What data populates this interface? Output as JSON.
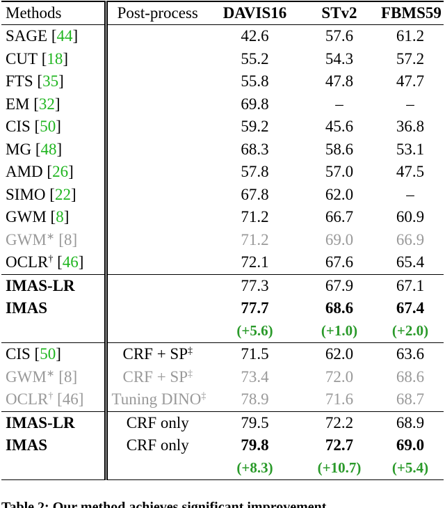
{
  "header": {
    "methods": "Methods",
    "post_process": "Post-process",
    "datasets": [
      "DAVIS16",
      "STv2",
      "FBMS59"
    ]
  },
  "cite_brackets": [
    "[",
    "]"
  ],
  "groups": [
    {
      "rows": [
        {
          "method": "SAGE",
          "cite": "44",
          "values": [
            "42.6",
            "57.6",
            "61.2"
          ]
        },
        {
          "method": "CUT",
          "cite": "18",
          "values": [
            "55.2",
            "54.3",
            "57.2"
          ]
        },
        {
          "method": "FTS",
          "cite": "35",
          "values": [
            "55.8",
            "47.8",
            "47.7"
          ]
        },
        {
          "method": "EM",
          "cite": "32",
          "values": [
            "69.8",
            "–",
            "–"
          ]
        },
        {
          "method": "CIS",
          "cite": "50",
          "values": [
            "59.2",
            "45.6",
            "36.8"
          ]
        },
        {
          "method": "MG",
          "cite": "48",
          "values": [
            "68.3",
            "58.6",
            "53.1"
          ]
        },
        {
          "method": "AMD",
          "cite": "26",
          "values": [
            "57.8",
            "57.0",
            "47.5"
          ]
        },
        {
          "method": "SIMO",
          "cite": "22",
          "values": [
            "67.8",
            "62.0",
            "–"
          ]
        },
        {
          "method": "GWM",
          "cite": "8",
          "values": [
            "71.2",
            "66.7",
            "60.9"
          ]
        },
        {
          "method": "GWM",
          "mark": "∗",
          "cite": "8",
          "gray": true,
          "values": [
            "71.2",
            "69.0",
            "66.9"
          ]
        },
        {
          "method": "OCLR",
          "mark": "†",
          "cite": "46",
          "values": [
            "72.1",
            "67.6",
            "65.4"
          ]
        }
      ]
    },
    {
      "rows": [
        {
          "method": "IMAS-LR",
          "method_bold": true,
          "values": [
            "77.3",
            "67.9",
            "67.1"
          ]
        },
        {
          "method": "IMAS",
          "method_bold": true,
          "values_bold": true,
          "values": [
            "77.7",
            "68.6",
            "67.4"
          ]
        },
        {
          "delta": true,
          "values": [
            "(+5.6)",
            "(+1.0)",
            "(+2.0)"
          ]
        }
      ]
    },
    {
      "rows": [
        {
          "method": "CIS",
          "cite": "50",
          "post": "CRF + SP",
          "post_mark": "‡",
          "values": [
            "71.5",
            "62.0",
            "63.6"
          ]
        },
        {
          "method": "GWM",
          "mark": "∗",
          "cite": "8",
          "gray": true,
          "post": "CRF + SP",
          "post_mark": "‡",
          "values": [
            "73.4",
            "72.0",
            "68.6"
          ]
        },
        {
          "method": "OCLR",
          "mark": "†",
          "cite": "46",
          "gray": true,
          "post": "Tuning DINO",
          "post_mark": "‡",
          "values": [
            "78.9",
            "71.6",
            "68.7"
          ]
        }
      ]
    },
    {
      "rows": [
        {
          "method": "IMAS-LR",
          "method_bold": true,
          "post": "CRF only",
          "values": [
            "79.5",
            "72.2",
            "68.9"
          ]
        },
        {
          "method": "IMAS",
          "method_bold": true,
          "values_bold": true,
          "post": "CRF only",
          "values": [
            "79.8",
            "72.7",
            "69.0"
          ]
        },
        {
          "delta": true,
          "values": [
            "(+8.3)",
            "(+10.7)",
            "(+5.4)"
          ]
        }
      ]
    }
  ],
  "caption": "Table 2: Our method achieves significant improvement"
}
